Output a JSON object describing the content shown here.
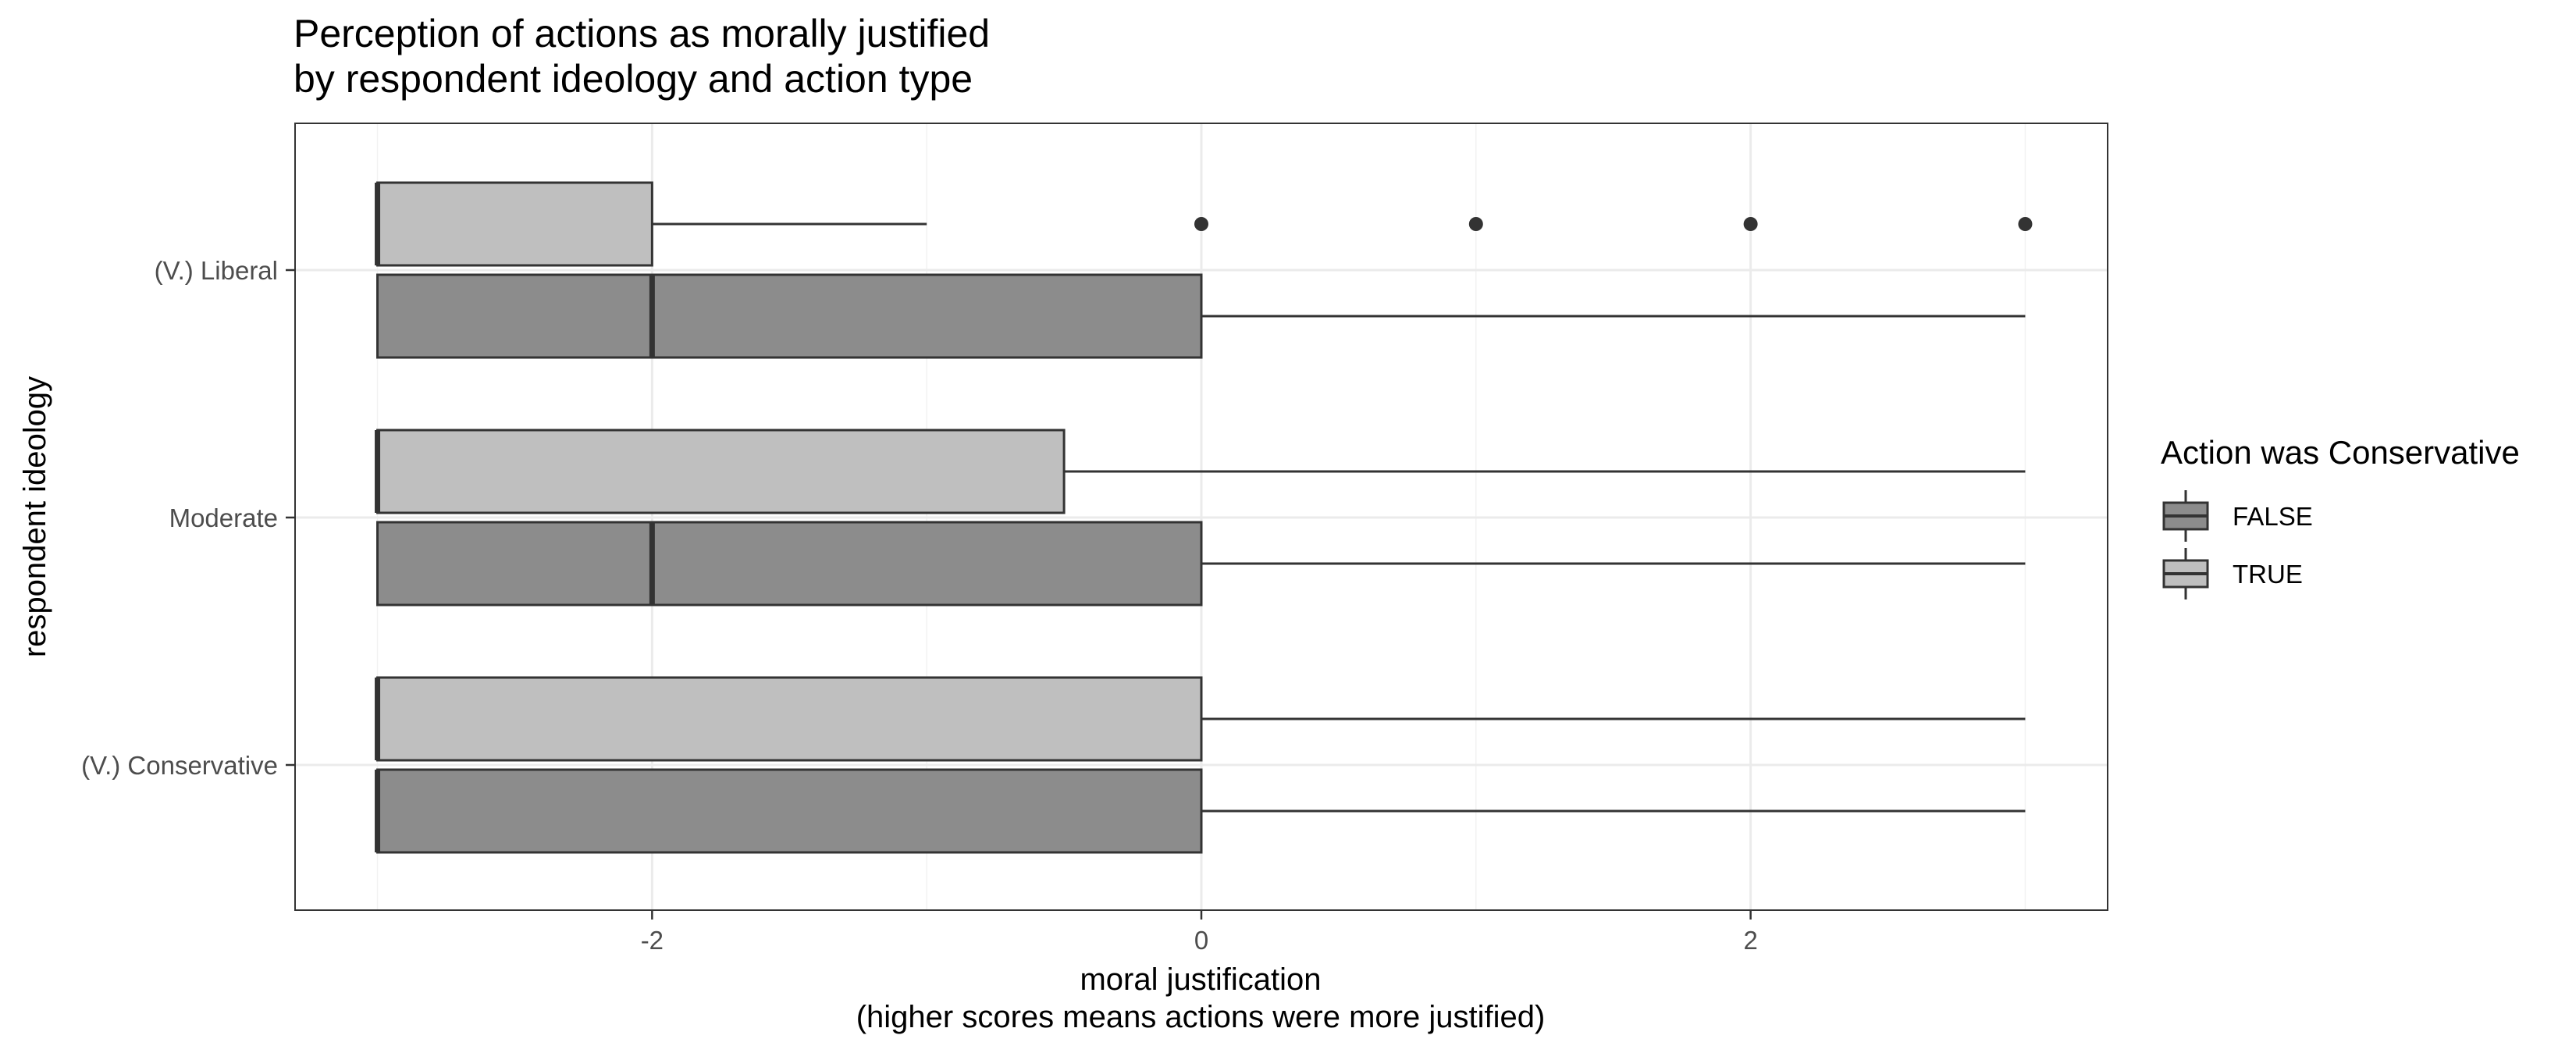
{
  "chart_data": {
    "type": "boxplot",
    "orientation": "horizontal",
    "title": [
      "Perception of actions as morally justified",
      "by respondent ideology and action type"
    ],
    "xlabel": [
      "moral justification",
      "(higher scores means actions were more justified)"
    ],
    "ylabel": "respondent ideology",
    "xlim": [
      -3.3,
      3.3
    ],
    "x_ticks": [
      -2,
      0,
      2
    ],
    "x_tick_labels": [
      "-2",
      "0",
      "2"
    ],
    "grid": true,
    "categories": [
      "(V.) Liberal",
      "Moderate",
      "(V.) Conservative"
    ],
    "legend": {
      "title": "Action was Conservative",
      "position": "right",
      "entries": [
        {
          "label": "FALSE",
          "fill": "#8c8c8c"
        },
        {
          "label": "TRUE",
          "fill": "#bfbfbf"
        }
      ]
    },
    "series": [
      {
        "name": "FALSE",
        "fill": "#8c8c8c",
        "boxes": [
          {
            "category": "(V.) Liberal",
            "whisker_low": -3,
            "q1": -3,
            "median": -2,
            "q3": 0,
            "whisker_high": 3,
            "outliers": []
          },
          {
            "category": "Moderate",
            "whisker_low": -3,
            "q1": -3,
            "median": -2,
            "q3": 0,
            "whisker_high": 3,
            "outliers": []
          },
          {
            "category": "(V.) Conservative",
            "whisker_low": -3,
            "q1": -3,
            "median": -3,
            "q3": 0,
            "whisker_high": 3,
            "outliers": []
          }
        ]
      },
      {
        "name": "TRUE",
        "fill": "#bfbfbf",
        "boxes": [
          {
            "category": "(V.) Liberal",
            "whisker_low": -3,
            "q1": -3,
            "median": -3,
            "q3": -2,
            "whisker_high": -1,
            "outliers": [
              0,
              1,
              2,
              3
            ]
          },
          {
            "category": "Moderate",
            "whisker_low": -3,
            "q1": -3,
            "median": -3,
            "q3": -0.5,
            "whisker_high": 3,
            "outliers": []
          },
          {
            "category": "(V.) Conservative",
            "whisker_low": -3,
            "q1": -3,
            "median": -3,
            "q3": 0,
            "whisker_high": 3,
            "outliers": []
          }
        ]
      }
    ]
  }
}
